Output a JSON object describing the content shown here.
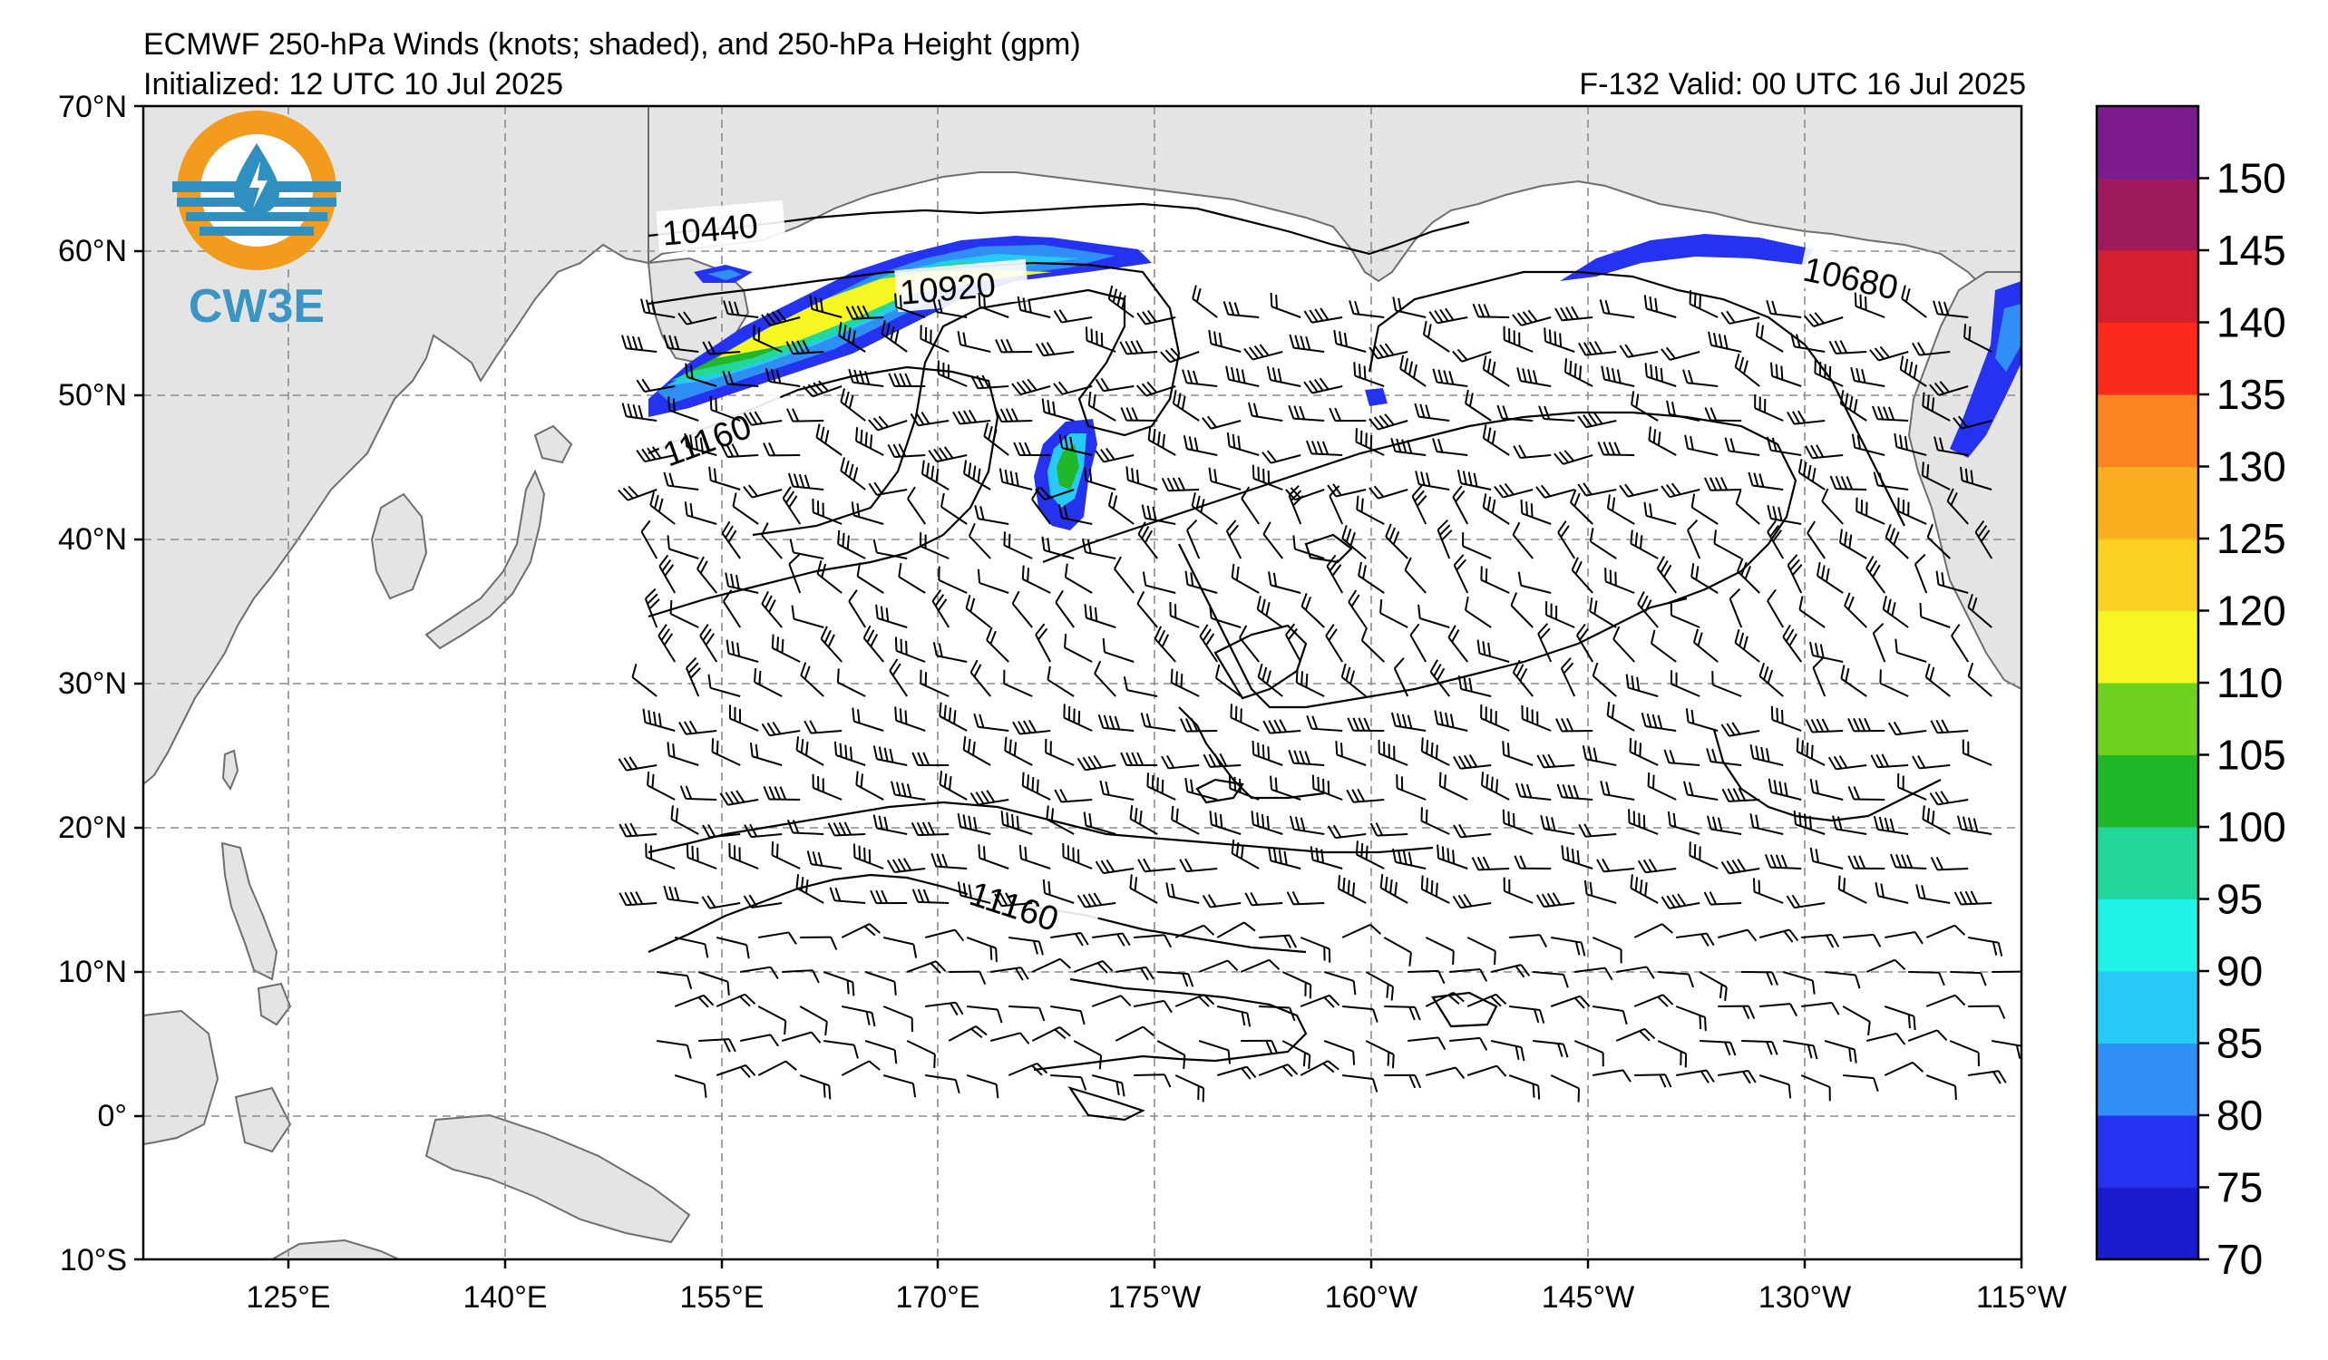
{
  "header": {
    "title": "ECMWF 250-hPa Winds (knots; shaded), and 250-hPa Height (gpm)",
    "initialized": "Initialized: 12 UTC 10 Jul 2025",
    "valid": "F-132  Valid: 00 UTC 16 Jul 2025"
  },
  "logo": {
    "text": "CW3E",
    "ring_color": "#f29b1d",
    "ring_color_light": "#f7b44a",
    "drop_color": "#2f8fbf",
    "text_color": "#3a95c4"
  },
  "map": {
    "lat_labels": [
      "70°N",
      "60°N",
      "50°N",
      "40°N",
      "30°N",
      "20°N",
      "10°N",
      "0°",
      "10°S"
    ],
    "lon_labels": [
      "125°E",
      "140°E",
      "155°E",
      "170°E",
      "175°W",
      "160°W",
      "145°W",
      "130°W",
      "115°W"
    ],
    "land_color": "#e4e4e4",
    "grid_color": "#8c8c8c"
  },
  "contours": [
    {
      "label": "10440"
    },
    {
      "label": "10920"
    },
    {
      "label": "11160"
    },
    {
      "label": "10680"
    },
    {
      "label": "11160"
    }
  ],
  "colorbar": {
    "ticks": [
      "70",
      "75",
      "80",
      "85",
      "90",
      "95",
      "100",
      "105",
      "110",
      "120",
      "125",
      "130",
      "135",
      "140",
      "145",
      "150"
    ],
    "colors": [
      "#1a1ccf",
      "#2533f0",
      "#2f8ff5",
      "#27c9f6",
      "#1ff2e6",
      "#22d89c",
      "#20b82a",
      "#6ed01f",
      "#f6f622",
      "#fcd020",
      "#fbae20",
      "#fb8420",
      "#fb2a1a",
      "#d4202e",
      "#a01a5e",
      "#7a1a8c"
    ]
  }
}
